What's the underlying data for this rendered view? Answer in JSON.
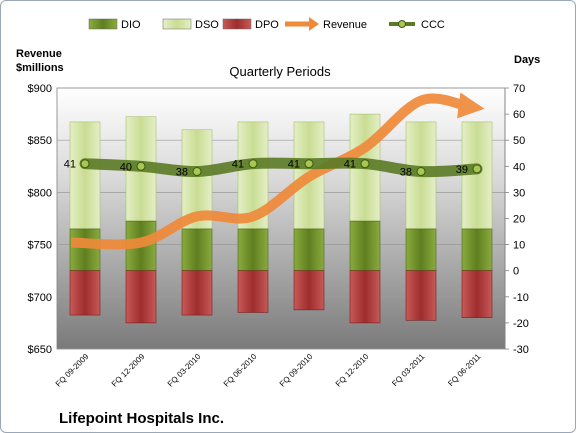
{
  "chart_data": {
    "type": "bar",
    "subtitle": "Quarterly Periods",
    "footer_title": "Lifepoint Hospitals Inc.",
    "y_left_label_lines": [
      "Revenue",
      "$millions"
    ],
    "y_right_label": "Days",
    "y_left_range": [
      650,
      900
    ],
    "y_left_ticks": [
      "$650",
      "$700",
      "$750",
      "$800",
      "$850",
      "$900"
    ],
    "y_right_range": [
      -30,
      70
    ],
    "y_right_ticks": [
      "-30",
      "-20",
      "-10",
      "0",
      "10",
      "20",
      "30",
      "40",
      "50",
      "60",
      "70"
    ],
    "categories": [
      "FQ 09-2009",
      "FQ 12-2009",
      "FQ 03-2010",
      "FQ 06-2010",
      "FQ 09-2010",
      "FQ 12-2010",
      "FQ 03-2011",
      "FQ 06-2011"
    ],
    "legend_position": "top",
    "series": [
      {
        "name": "DIO",
        "type": "bar",
        "axis": "right",
        "color": "#6f8f2a",
        "values": [
          16,
          19,
          16,
          16,
          16,
          19,
          16,
          16
        ]
      },
      {
        "name": "DSO",
        "type": "bar",
        "axis": "right",
        "color": "#d2e3a4",
        "values": [
          41,
          40,
          38,
          41,
          41,
          41,
          41,
          41
        ]
      },
      {
        "name": "DPO",
        "type": "bar",
        "axis": "right",
        "color": "#b23a3a",
        "values": [
          -17,
          -20,
          -17,
          -16,
          -15,
          -20,
          -19,
          -18
        ]
      },
      {
        "name": "Revenue",
        "type": "line",
        "axis": "left",
        "color": "#ef8a3a",
        "values": [
          752,
          752,
          777,
          777,
          815,
          843,
          888,
          882
        ]
      },
      {
        "name": "CCC",
        "type": "line",
        "axis": "right",
        "color": "#5a7a25",
        "values": [
          41,
          40,
          38,
          41,
          41,
          41,
          38,
          39
        ],
        "labels": [
          "41",
          "40",
          "38",
          "41",
          "41",
          "41",
          "38",
          "39"
        ]
      }
    ]
  }
}
